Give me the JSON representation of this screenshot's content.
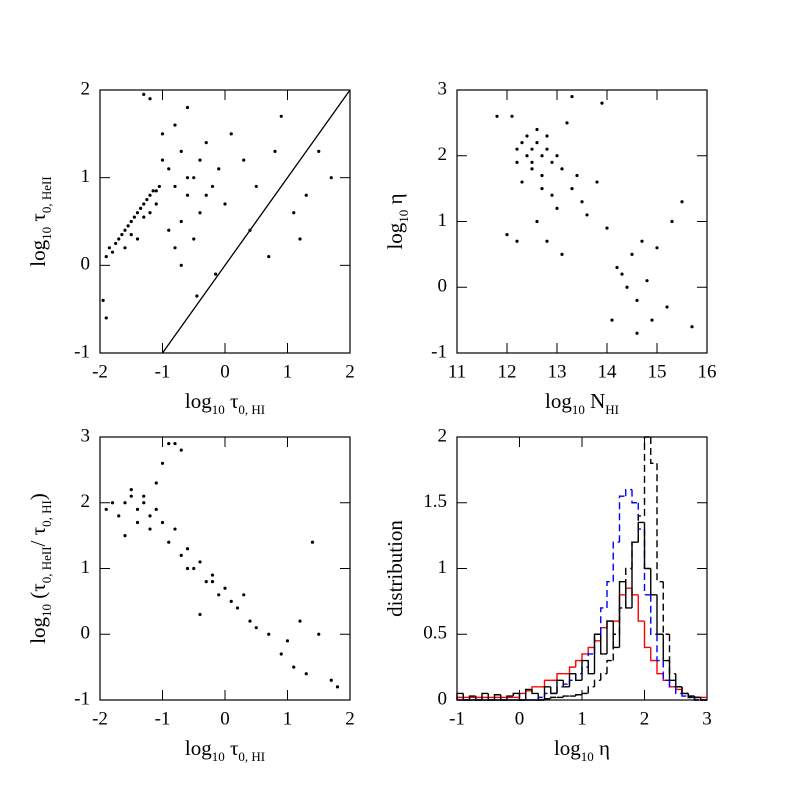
{
  "chart_data": [
    {
      "type": "scatter",
      "xlabel": [
        {
          "text": "log"
        },
        {
          "text": "10",
          "sub": true
        },
        {
          "text": " τ"
        },
        {
          "text": "0, HI",
          "sub": true
        }
      ],
      "ylabel": [
        {
          "text": "log"
        },
        {
          "text": "10",
          "sub": true
        },
        {
          "text": " τ"
        },
        {
          "text": "0, HeII",
          "sub": true
        }
      ],
      "xlim": [
        -2,
        2
      ],
      "ylim": [
        -1,
        2
      ],
      "xticks": [
        -2,
        -1,
        0,
        1,
        2
      ],
      "yticks": [
        -1,
        0,
        1,
        2
      ],
      "color": "#000000",
      "x": [
        -1.9,
        -1.85,
        -1.8,
        -1.75,
        -1.7,
        -1.65,
        -1.6,
        -1.55,
        -1.5,
        -1.45,
        -1.4,
        -1.35,
        -1.3,
        -1.25,
        -1.2,
        -1.15,
        -1.1,
        -1.05,
        -1.6,
        -1.5,
        -1.4,
        -1.3,
        -1.2,
        -1.1,
        -1.0,
        -0.9,
        -0.8,
        -0.7,
        -0.6,
        -0.5,
        -0.4,
        -0.3,
        -0.2,
        -0.1,
        0.0,
        -0.9,
        -0.8,
        -0.7,
        -0.6,
        -0.5,
        -0.4,
        -0.3,
        -1.2,
        -1.0,
        -0.8,
        -0.6,
        0.1,
        0.3,
        0.5,
        0.7,
        0.9,
        1.1,
        1.3,
        1.5,
        0.8,
        1.2,
        1.7,
        -1.95,
        -1.9,
        0.4,
        -0.45,
        -0.7,
        -1.3,
        -0.15
      ],
      "y": [
        0.1,
        0.2,
        0.15,
        0.25,
        0.3,
        0.35,
        0.4,
        0.45,
        0.5,
        0.55,
        0.6,
        0.65,
        0.7,
        0.75,
        0.8,
        0.85,
        0.85,
        0.9,
        0.2,
        0.35,
        0.3,
        0.55,
        0.6,
        0.7,
        1.2,
        1.1,
        0.9,
        1.3,
        0.8,
        1.0,
        0.6,
        1.4,
        0.9,
        1.1,
        0.7,
        0.4,
        1.6,
        0.5,
        1.8,
        0.3,
        1.2,
        0.8,
        1.9,
        1.5,
        0.2,
        1.0,
        1.5,
        1.2,
        0.9,
        0.1,
        1.7,
        0.6,
        0.8,
        1.3,
        1.3,
        0.3,
        1.0,
        -0.4,
        -0.6,
        0.4,
        -0.35,
        0.0,
        1.95,
        -0.1
      ],
      "lines": [
        {
          "x": [
            -1,
            2
          ],
          "y": [
            -1,
            2
          ],
          "color": "#000000"
        }
      ]
    },
    {
      "type": "scatter",
      "xlabel": [
        {
          "text": "log"
        },
        {
          "text": "10",
          "sub": true
        },
        {
          "text": " N"
        },
        {
          "text": "HI",
          "sub": true
        }
      ],
      "ylabel": [
        {
          "text": "log"
        },
        {
          "text": "10",
          "sub": true
        },
        {
          "text": " η"
        }
      ],
      "xlim": [
        11,
        16
      ],
      "ylim": [
        -1,
        3
      ],
      "xticks": [
        11,
        12,
        13,
        14,
        15,
        16
      ],
      "yticks": [
        -1,
        0,
        1,
        2,
        3
      ],
      "color": "#000000",
      "x": [
        12.2,
        12.3,
        12.4,
        12.5,
        12.6,
        12.7,
        12.8,
        12.9,
        13.0,
        12.4,
        12.5,
        12.6,
        12.7,
        12.8,
        12.3,
        12.5,
        12.7,
        12.9,
        13.1,
        13.3,
        13.5,
        12.1,
        12.2,
        12.6,
        13.0,
        13.2,
        13.4,
        13.6,
        12.8,
        13.1,
        13.8,
        14.0,
        14.2,
        14.3,
        14.4,
        14.5,
        14.6,
        14.7,
        14.8,
        14.9,
        15.0,
        15.2,
        15.5,
        15.7,
        12.0,
        11.8,
        12.2,
        13.3,
        13.9,
        14.1,
        14.6,
        15.3
      ],
      "y": [
        2.1,
        2.2,
        2.0,
        2.1,
        2.2,
        2.0,
        2.1,
        1.9,
        2.0,
        2.3,
        1.8,
        2.4,
        1.7,
        2.3,
        1.6,
        1.9,
        1.5,
        1.4,
        1.8,
        1.5,
        1.3,
        2.6,
        1.9,
        1.0,
        1.2,
        2.5,
        1.7,
        1.1,
        0.7,
        0.5,
        1.6,
        0.9,
        0.3,
        0.2,
        0.0,
        0.5,
        -0.2,
        0.7,
        0.1,
        -0.5,
        0.6,
        -0.3,
        1.3,
        -0.6,
        0.8,
        2.6,
        0.7,
        2.9,
        2.8,
        -0.5,
        -0.7,
        1.0
      ]
    },
    {
      "type": "scatter",
      "xlabel": [
        {
          "text": "log"
        },
        {
          "text": "10",
          "sub": true
        },
        {
          "text": " τ"
        },
        {
          "text": "0, HI",
          "sub": true
        }
      ],
      "ylabel": [
        {
          "text": "log"
        },
        {
          "text": "10",
          "sub": true
        },
        {
          "text": " (τ"
        },
        {
          "text": "0, HeII",
          "sub": true
        },
        {
          "text": "/ τ"
        },
        {
          "text": "0, HI",
          "sub": true
        },
        {
          "text": ")"
        }
      ],
      "xlim": [
        -2,
        2
      ],
      "ylim": [
        -1,
        3
      ],
      "xticks": [
        -2,
        -1,
        0,
        1,
        2
      ],
      "yticks": [
        -1,
        0,
        1,
        2,
        3
      ],
      "color": "#000000",
      "x": [
        -1.9,
        -1.8,
        -1.7,
        -1.6,
        -1.5,
        -1.4,
        -1.3,
        -1.2,
        -1.1,
        -1.0,
        -1.5,
        -1.4,
        -1.3,
        -1.2,
        -1.1,
        -0.9,
        -0.8,
        -0.7,
        -0.6,
        -0.5,
        -0.4,
        -0.3,
        -0.2,
        -0.1,
        0.0,
        0.1,
        0.2,
        0.3,
        0.4,
        -1.0,
        -0.8,
        -0.6,
        -0.4,
        -0.2,
        0.5,
        0.7,
        0.9,
        1.0,
        1.1,
        1.2,
        1.3,
        1.5,
        1.7,
        -0.9,
        -0.7,
        1.4,
        1.8,
        -1.6
      ],
      "y": [
        1.9,
        2.0,
        1.8,
        2.0,
        2.1,
        1.9,
        2.0,
        1.8,
        1.9,
        1.7,
        2.2,
        1.7,
        2.1,
        1.6,
        2.3,
        1.4,
        1.6,
        1.2,
        1.3,
        1.0,
        1.1,
        0.8,
        0.9,
        0.6,
        0.7,
        0.5,
        0.4,
        0.6,
        0.2,
        2.6,
        2.9,
        1.0,
        0.3,
        0.8,
        0.1,
        0.0,
        -0.3,
        -0.1,
        -0.5,
        0.2,
        -0.6,
        0.0,
        -0.7,
        2.9,
        2.8,
        1.4,
        -0.8,
        1.5
      ]
    },
    {
      "type": "histogram",
      "xlabel": [
        {
          "text": "log"
        },
        {
          "text": "10",
          "sub": true
        },
        {
          "text": " η"
        }
      ],
      "ylabel": [
        {
          "text": "distribution"
        }
      ],
      "xlim": [
        -1,
        3
      ],
      "ylim": [
        0,
        2
      ],
      "xticks": [
        -1,
        0,
        1,
        2,
        3
      ],
      "yticks": [
        0,
        0.5,
        1,
        1.5,
        2
      ],
      "bins": [
        -1,
        -0.9,
        -0.8,
        -0.7,
        -0.6,
        -0.5,
        -0.4,
        -0.3,
        -0.2,
        -0.1,
        0,
        0.1,
        0.2,
        0.3,
        0.4,
        0.5,
        0.6,
        0.7,
        0.8,
        0.9,
        1,
        1.1,
        1.2,
        1.3,
        1.4,
        1.5,
        1.6,
        1.7,
        1.8,
        1.9,
        2,
        2.1,
        2.2,
        2.3,
        2.4,
        2.5,
        2.6,
        2.7,
        2.8,
        2.9,
        3
      ],
      "series": [
        {
          "color": "#ff0000",
          "dash": false,
          "values": [
            0.02,
            0.02,
            0.02,
            0.02,
            0.02,
            0.02,
            0.02,
            0.02,
            0.02,
            0.02,
            0.05,
            0.07,
            0.1,
            0.1,
            0.15,
            0.15,
            0.2,
            0.2,
            0.25,
            0.3,
            0.35,
            0.4,
            0.45,
            0.55,
            0.6,
            0.6,
            0.8,
            0.85,
            0.8,
            0.6,
            0.4,
            0.3,
            0.2,
            0.15,
            0.1,
            0.08,
            0.05,
            0.03,
            0.02,
            0.02
          ]
        },
        {
          "color": "#0000ff",
          "dash": true,
          "values": [
            0,
            0,
            0,
            0,
            0,
            0,
            0,
            0,
            0,
            0,
            0,
            0,
            0,
            0.02,
            0.05,
            0.05,
            0.1,
            0.12,
            0.15,
            0.2,
            0.25,
            0.35,
            0.5,
            0.7,
            0.9,
            1.2,
            1.55,
            1.6,
            1.5,
            1.3,
            0.8,
            0.5,
            0.3,
            0.15,
            0.1,
            0.05,
            0.03,
            0.02,
            0,
            0
          ]
        },
        {
          "color": "#000000",
          "dash": true,
          "values": [
            0,
            0,
            0,
            0,
            0,
            0,
            0,
            0,
            0,
            0,
            0,
            0,
            0,
            0,
            0.01,
            0.02,
            0.02,
            0.03,
            0.03,
            0.04,
            0.05,
            0.1,
            0.15,
            0.2,
            0.3,
            0.5,
            0.7,
            1.0,
            1.2,
            1.4,
            2.0,
            1.8,
            0.9,
            0.5,
            0.2,
            0.1,
            0.05,
            0.02,
            0,
            0
          ]
        },
        {
          "color": "#000000",
          "dash": false,
          "values": [
            0.05,
            0,
            0.03,
            0,
            0.05,
            0,
            0.04,
            0,
            0.03,
            0.05,
            0,
            0.08,
            0.05,
            0,
            0.1,
            0.05,
            0.15,
            0.1,
            0.2,
            0.15,
            0.3,
            0.2,
            0.5,
            0.35,
            0.6,
            0.4,
            0.9,
            0.7,
            1.2,
            1.35,
            1.0,
            0.8,
            0.5,
            0.3,
            0.15,
            0.1,
            0.05,
            0.03,
            0.02,
            0
          ]
        }
      ]
    }
  ]
}
